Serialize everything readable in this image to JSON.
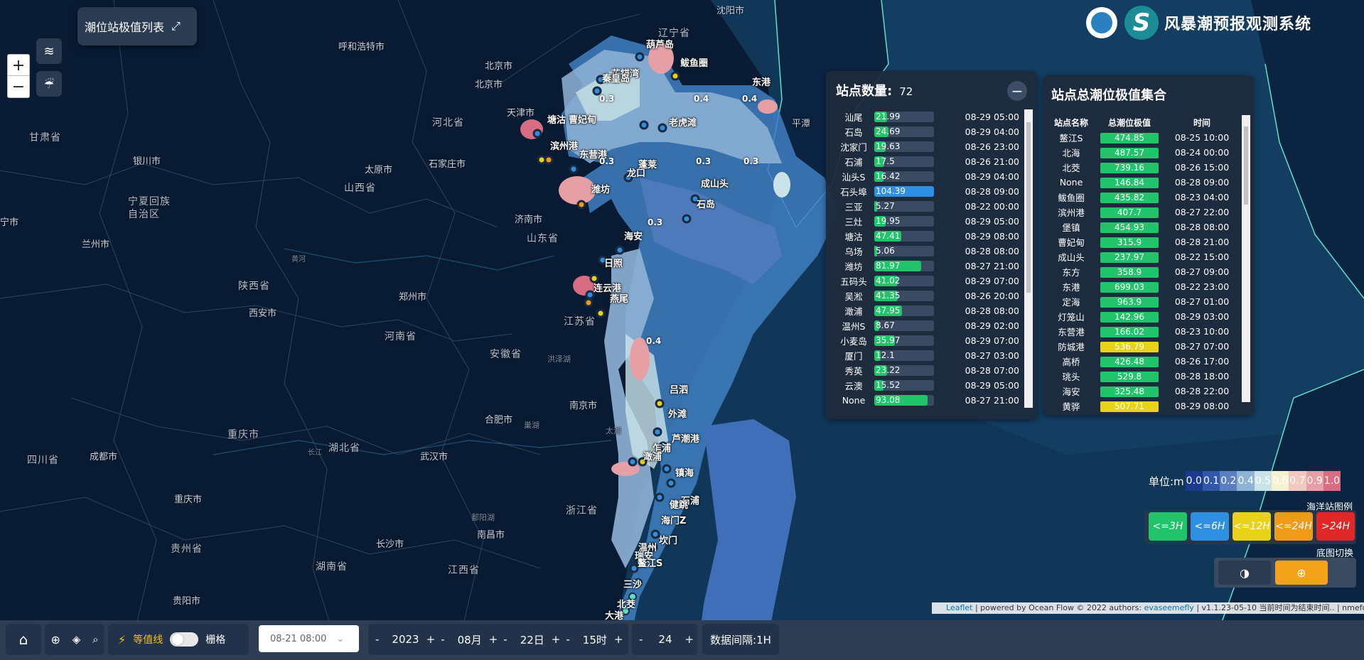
{
  "app": {
    "title": "风暴潮预报观测系统"
  },
  "top_left": {
    "list_button_label": "潮位站极值列表"
  },
  "zoom": {
    "plus": "+",
    "minus": "−"
  },
  "map_labels": {
    "cities": [
      "沈阳市",
      "呼和浩特市",
      "北京市",
      "北京市",
      "天津市",
      "银川市",
      "太原市",
      "石家庄市",
      "兰州市",
      "济南市",
      "西安市",
      "郑州市",
      "合肥市",
      "南京市",
      "武汉市",
      "成都市",
      "重庆市",
      "长沙市",
      "南昌市",
      "贵阳市",
      "宁市"
    ],
    "provinces": [
      "辽宁省",
      "甘肃省",
      "宁夏回族自治区",
      "河北省",
      "山西省",
      "山东省",
      "陕西省",
      "河南省",
      "江苏省",
      "安徽省",
      "湖北省",
      "四川省",
      "重庆市",
      "浙江省",
      "贵州省",
      "湖南省",
      "江西省"
    ],
    "rivers": [
      "黄河",
      "洪泽湖",
      "太湖",
      "长江",
      "巢湖",
      "鄱阳湖"
    ],
    "stations": [
      "葫芦岛",
      "鲅鱼圈",
      "芷锚湾",
      "秦皇岛",
      "东港",
      "老虎滩",
      "塘沽",
      "曹妃甸",
      "滨州港",
      "东营港",
      "蓬莱",
      "龙口",
      "成山头",
      "石岛",
      "潍坊",
      "平潭",
      "海安",
      "日照",
      "连云港",
      "燕尾",
      "吕泗",
      "外滩",
      "芦潮港",
      "乍浦",
      "澉浦",
      "镇海",
      "石浦",
      "健跳",
      "海门Z",
      "坎门",
      "温州",
      "瑞安",
      "鳌江S",
      "三沙",
      "北茭",
      "大港"
    ],
    "contours": [
      "0.3",
      "0.4",
      "0.4",
      "0.3",
      "0.3",
      "0.3",
      "0.3",
      "0.4"
    ]
  },
  "station_panel": {
    "title": "站点数量:",
    "count": "72",
    "rows": [
      {
        "name": "汕尾",
        "value": "21.99",
        "fill": 0.21,
        "color": "#21c46a",
        "time": "08-29 05:00"
      },
      {
        "name": "石岛",
        "value": "24.69",
        "fill": 0.24,
        "color": "#21c46a",
        "time": "08-29 04:00"
      },
      {
        "name": "沈家门",
        "value": "19.63",
        "fill": 0.19,
        "color": "#21c46a",
        "time": "08-26 23:00"
      },
      {
        "name": "石浦",
        "value": "17.5",
        "fill": 0.17,
        "color": "#21c46a",
        "time": "08-26 21:00"
      },
      {
        "name": "汕头S",
        "value": "16.42",
        "fill": 0.16,
        "color": "#21c46a",
        "time": "08-29 04:00"
      },
      {
        "name": "石头埠",
        "value": "104.39",
        "fill": 1.0,
        "color": "#2f8fe0",
        "time": "08-28 09:00"
      },
      {
        "name": "三亚",
        "value": "5.27",
        "fill": 0.05,
        "color": "#21c46a",
        "time": "08-22 00:00"
      },
      {
        "name": "三灶",
        "value": "19.95",
        "fill": 0.19,
        "color": "#21c46a",
        "time": "08-29 05:00"
      },
      {
        "name": "塘沽",
        "value": "47.41",
        "fill": 0.45,
        "color": "#21c46a",
        "time": "08-29 08:00"
      },
      {
        "name": "乌场",
        "value": "5.06",
        "fill": 0.05,
        "color": "#21c46a",
        "time": "08-28 08:00"
      },
      {
        "name": "潍坊",
        "value": "81.97",
        "fill": 0.78,
        "color": "#21c46a",
        "time": "08-27 21:00"
      },
      {
        "name": "五码头",
        "value": "41.02",
        "fill": 0.39,
        "color": "#21c46a",
        "time": "08-29 07:00"
      },
      {
        "name": "吴淞",
        "value": "41.35",
        "fill": 0.39,
        "color": "#21c46a",
        "time": "08-26 20:00"
      },
      {
        "name": "澉浦",
        "value": "47.95",
        "fill": 0.46,
        "color": "#21c46a",
        "time": "08-28 08:00"
      },
      {
        "name": "温州S",
        "value": "8.67",
        "fill": 0.08,
        "color": "#21c46a",
        "time": "08-29 02:00"
      },
      {
        "name": "小麦岛",
        "value": "35.97",
        "fill": 0.34,
        "color": "#21c46a",
        "time": "08-29 07:00"
      },
      {
        "name": "厦门",
        "value": "12.1",
        "fill": 0.11,
        "color": "#21c46a",
        "time": "08-27 03:00"
      },
      {
        "name": "秀英",
        "value": "23.22",
        "fill": 0.22,
        "color": "#21c46a",
        "time": "08-28 07:00"
      },
      {
        "name": "云澳",
        "value": "15.52",
        "fill": 0.15,
        "color": "#21c46a",
        "time": "08-29 05:00"
      },
      {
        "name": "None",
        "value": "93.08",
        "fill": 0.89,
        "color": "#21c46a",
        "time": "08-27 21:00"
      }
    ]
  },
  "extreme_panel": {
    "title": "站点总潮位极值集合",
    "headers": [
      "站点名称",
      "总潮位极值",
      "时间"
    ],
    "rows": [
      {
        "name": "鳌江S",
        "value": "474.85",
        "color": "#21c46a",
        "time": "08-25 10:00"
      },
      {
        "name": "北海",
        "value": "487.57",
        "color": "#21c46a",
        "time": "08-24 00:00"
      },
      {
        "name": "北茭",
        "value": "739.16",
        "color": "#21c46a",
        "time": "08-26 15:00"
      },
      {
        "name": "None",
        "value": "146.84",
        "color": "#21c46a",
        "time": "08-28 09:00"
      },
      {
        "name": "鲅鱼圈",
        "value": "435.82",
        "color": "#21c46a",
        "time": "08-23 04:00"
      },
      {
        "name": "滨州港",
        "value": "407.7",
        "color": "#21c46a",
        "time": "08-27 22:00"
      },
      {
        "name": "堡镇",
        "value": "454.93",
        "color": "#21c46a",
        "time": "08-28 08:00"
      },
      {
        "name": "曹妃甸",
        "value": "315.9",
        "color": "#21c46a",
        "time": "08-28 21:00"
      },
      {
        "name": "成山头",
        "value": "237.97",
        "color": "#21c46a",
        "time": "08-22 15:00"
      },
      {
        "name": "东方",
        "value": "358.9",
        "color": "#21c46a",
        "time": "08-27 09:00"
      },
      {
        "name": "东港",
        "value": "699.03",
        "color": "#21c46a",
        "time": "08-22 23:00"
      },
      {
        "name": "定海",
        "value": "963.9",
        "color": "#21c46a",
        "time": "08-27 01:00"
      },
      {
        "name": "灯笼山",
        "value": "142.96",
        "color": "#21c46a",
        "time": "08-29 03:00"
      },
      {
        "name": "东营港",
        "value": "166.02",
        "color": "#21c46a",
        "time": "08-23 10:00"
      },
      {
        "name": "防城港",
        "value": "536.79",
        "color": "#e8d21a",
        "time": "08-27 07:00"
      },
      {
        "name": "高桥",
        "value": "426.48",
        "color": "#21c46a",
        "time": "08-26 17:00"
      },
      {
        "name": "珧头",
        "value": "529.8",
        "color": "#21c46a",
        "time": "08-28 18:00"
      },
      {
        "name": "海安",
        "value": "325.48",
        "color": "#21c46a",
        "time": "08-28 22:00"
      },
      {
        "name": "黄骅",
        "value": "507.71",
        "color": "#e8d21a",
        "time": "08-29 08:00"
      }
    ]
  },
  "color_scale": {
    "unit": "单位:m",
    "ticks": [
      "0.0",
      "0.1",
      "0.2",
      "0.4",
      "0.5",
      "0.6",
      "0.7",
      "0.9",
      "1.0"
    ],
    "colors": [
      "#1a3a8f",
      "#3157a8",
      "#5a7fc0",
      "#8fb3d6",
      "#c9e3e8",
      "#f6f1d2",
      "#f1c9c0",
      "#e6a0a5",
      "#d86c82",
      "#b03a5a"
    ]
  },
  "station_legend": {
    "title": "海洋站图例",
    "items": [
      {
        "label": "<=3H",
        "color": "#21c46a"
      },
      {
        "label": "<=6H",
        "color": "#2f8fe0"
      },
      {
        "label": "<=12H",
        "color": "#e8d21a"
      },
      {
        "label": "<=24H",
        "color": "#f09a1a"
      },
      {
        "label": ">24H",
        "color": "#e02828"
      }
    ]
  },
  "basemap": {
    "title": "底图切换"
  },
  "attribution": {
    "leaflet": "Leaflet",
    "text1": " | powered by Ocean Flow © 2022 authors: ",
    "author": "evaseemefly",
    "text2": " | v1.1.23-05-10 当前时间为结束时间.. | nmefc"
  },
  "bottom": {
    "contour_label": "等值线",
    "grid_label": "栅格",
    "datetime": "08-21 08:00",
    "year": "2023",
    "month": "08月",
    "day": "22日",
    "hour": "15时",
    "count": "24",
    "interval": "数据间隔:1H",
    "minus": "-",
    "plus": "+"
  }
}
